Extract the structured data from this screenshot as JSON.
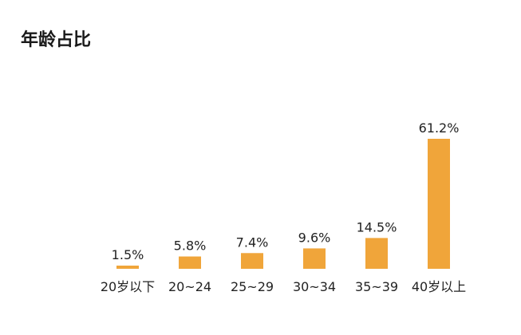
{
  "chart_data": {
    "type": "bar",
    "title": "年龄占比",
    "categories": [
      "20岁以下",
      "20~24",
      "25~29",
      "30~34",
      "35~39",
      "40岁以上"
    ],
    "values": [
      1.5,
      5.8,
      7.4,
      9.6,
      14.5,
      61.2
    ],
    "value_labels": [
      "1.5%",
      "5.8%",
      "7.4%",
      "9.6%",
      "14.5%",
      "61.2%"
    ],
    "unit": "%",
    "grid": false,
    "legend": "none",
    "bar_color": "#F0A53A"
  }
}
